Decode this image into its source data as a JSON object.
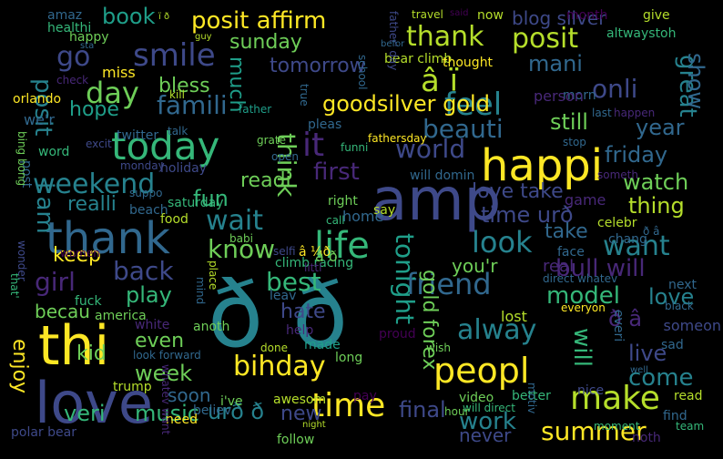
{
  "background": "#000000",
  "palette": [
    "#fde725",
    "#b5de2b",
    "#6ece58",
    "#35b779",
    "#1f9e89",
    "#26828e",
    "#31688e",
    "#3e4989",
    "#482878",
    "#440154"
  ],
  "words": [
    {
      "text": "ð ð",
      "color": "#26828e"
    },
    {
      "text": "amp",
      "color": "#3e4989"
    },
    {
      "text": "love",
      "color": "#3e4989"
    },
    {
      "text": "thi",
      "color": "#fde725"
    },
    {
      "text": "happi",
      "color": "#fde725"
    },
    {
      "text": "thank",
      "color": "#31688e"
    },
    {
      "text": "today",
      "color": "#35b779"
    },
    {
      "text": "life",
      "color": "#35b779"
    },
    {
      "text": "peopl",
      "color": "#fde725"
    },
    {
      "text": "time",
      "color": "#fde725"
    },
    {
      "text": "make",
      "color": "#b5de2b"
    },
    {
      "text": "it",
      "color": "#482878"
    },
    {
      "text": "bihday",
      "color": "#fde725"
    },
    {
      "text": "â ï",
      "color": "#b5de2b"
    },
    {
      "text": "feel",
      "color": "#26828e"
    },
    {
      "text": "smile",
      "color": "#3e4989"
    },
    {
      "text": "posit affirm",
      "color": "#fde725"
    },
    {
      "text": "thank",
      "color": "#b5de2b"
    },
    {
      "text": "posit",
      "color": "#b5de2b"
    },
    {
      "text": "go",
      "color": "#3e4989"
    },
    {
      "text": "day",
      "color": "#6ece58"
    },
    {
      "text": "wait",
      "color": "#26828e"
    },
    {
      "text": "look",
      "color": "#26828e"
    },
    {
      "text": "friend",
      "color": "#31688e"
    },
    {
      "text": "alway",
      "color": "#26828e"
    },
    {
      "text": "want",
      "color": "#26828e"
    },
    {
      "text": "know",
      "color": "#6ece58"
    },
    {
      "text": "back",
      "color": "#3e4989"
    },
    {
      "text": "best",
      "color": "#35b779"
    },
    {
      "text": "girl",
      "color": "#482878"
    },
    {
      "text": "weekend",
      "color": "#26828e"
    },
    {
      "text": "first",
      "color": "#482878"
    },
    {
      "text": "world",
      "color": "#3e4989"
    },
    {
      "text": "beauti",
      "color": "#31688e"
    },
    {
      "text": "goodsilver gold",
      "color": "#fde725"
    },
    {
      "text": "famili",
      "color": "#31688e"
    },
    {
      "text": "think",
      "color": "#6ece58"
    },
    {
      "text": "onli",
      "color": "#3e4989"
    },
    {
      "text": "great",
      "color": "#26828e"
    },
    {
      "text": "show",
      "color": "#31688e"
    },
    {
      "text": "posit",
      "color": "#26828e"
    },
    {
      "text": "i am",
      "color": "#26828e"
    },
    {
      "text": "tonight",
      "color": "#1f9e89"
    },
    {
      "text": "work",
      "color": "#26828e"
    },
    {
      "text": "final",
      "color": "#3e4989"
    },
    {
      "text": "summer",
      "color": "#fde725"
    },
    {
      "text": "come",
      "color": "#26828e"
    },
    {
      "text": "week",
      "color": "#6ece58"
    },
    {
      "text": "play",
      "color": "#35b779"
    },
    {
      "text": "bull will",
      "color": "#482878"
    },
    {
      "text": "model",
      "color": "#35b779"
    },
    {
      "text": "love",
      "color": "#26828e"
    },
    {
      "text": "will",
      "color": "#35b779"
    },
    {
      "text": "gold forex",
      "color": "#6ece58"
    },
    {
      "text": "urð ð",
      "color": "#26828e"
    },
    {
      "text": "veri",
      "color": "#35b779"
    },
    {
      "text": "music",
      "color": "#35b779"
    },
    {
      "text": "new",
      "color": "#3e4989"
    },
    {
      "text": "never",
      "color": "#3e4989"
    },
    {
      "text": "live",
      "color": "#3e4989"
    },
    {
      "text": "ð â",
      "color": "#482878"
    },
    {
      "text": "watch",
      "color": "#6ece58"
    },
    {
      "text": "thing",
      "color": "#b5de2b"
    },
    {
      "text": "friday",
      "color": "#31688e"
    },
    {
      "text": "year",
      "color": "#31688e"
    },
    {
      "text": "still",
      "color": "#6ece58"
    },
    {
      "text": "mani",
      "color": "#31688e"
    },
    {
      "text": "time urð",
      "color": "#3e4989"
    },
    {
      "text": "love take",
      "color": "#3e4989"
    },
    {
      "text": "take",
      "color": "#31688e"
    },
    {
      "text": "you'r",
      "color": "#6ece58"
    },
    {
      "text": "keep",
      "color": "#fde725"
    },
    {
      "text": "becau",
      "color": "#6ece58"
    },
    {
      "text": "even",
      "color": "#6ece58"
    },
    {
      "text": "kid",
      "color": "#6ece58"
    },
    {
      "text": "enjoy",
      "color": "#fde725"
    },
    {
      "text": "hate",
      "color": "#3e4989"
    },
    {
      "text": "realli",
      "color": "#26828e"
    },
    {
      "text": "fun",
      "color": "#35b779"
    },
    {
      "text": "readi",
      "color": "#6ece58"
    },
    {
      "text": "tomorrow",
      "color": "#3e4989"
    },
    {
      "text": "bless",
      "color": "#6ece58"
    },
    {
      "text": "hope",
      "color": "#1f9e89"
    },
    {
      "text": "sunday",
      "color": "#6ece58"
    },
    {
      "text": "much",
      "color": "#1f9e89"
    },
    {
      "text": "blog silver",
      "color": "#3e4989"
    },
    {
      "text": "book",
      "color": "#1f9e89"
    },
    {
      "text": "amaz",
      "color": "#31688e"
    },
    {
      "text": "ï ð",
      "color": "#b5de2b"
    },
    {
      "text": "travel",
      "color": "#b5de2b"
    },
    {
      "text": "said",
      "color": "#440154"
    },
    {
      "text": "now",
      "color": "#b5de2b"
    },
    {
      "text": "month",
      "color": "#440154"
    },
    {
      "text": "give",
      "color": "#b5de2b"
    },
    {
      "text": "altwaystoh",
      "color": "#35b779"
    },
    {
      "text": "healthi",
      "color": "#35b779"
    },
    {
      "text": "happy",
      "color": "#6ece58"
    },
    {
      "text": "guy",
      "color": "#b5de2b"
    },
    {
      "text": "bear climb",
      "color": "#b5de2b"
    },
    {
      "text": "sta",
      "color": "#31688e"
    },
    {
      "text": "miss",
      "color": "#fde725"
    },
    {
      "text": "check",
      "color": "#482878"
    },
    {
      "text": "orlando",
      "color": "#fde725"
    },
    {
      "text": "kill",
      "color": "#b5de2b"
    },
    {
      "text": "thought",
      "color": "#fde725"
    },
    {
      "text": "morn",
      "color": "#31688e"
    },
    {
      "text": "last",
      "color": "#31688e"
    },
    {
      "text": "happen",
      "color": "#482878"
    },
    {
      "text": "twitter",
      "color": "#31688e"
    },
    {
      "text": "talk",
      "color": "#31688e"
    },
    {
      "text": "father",
      "color": "#1f9e89"
    },
    {
      "text": "pleas",
      "color": "#31688e"
    },
    {
      "text": "funni",
      "color": "#35b779"
    },
    {
      "text": "fathersday",
      "color": "#fde725"
    },
    {
      "text": "grate",
      "color": "#6ece58"
    },
    {
      "text": "word",
      "color": "#35b779"
    },
    {
      "text": "excit",
      "color": "#3e4989"
    },
    {
      "text": "monday",
      "color": "#3e4989"
    },
    {
      "text": "holiday",
      "color": "#3e4989"
    },
    {
      "text": "open",
      "color": "#31688e"
    },
    {
      "text": "stop",
      "color": "#31688e"
    },
    {
      "text": "will domin",
      "color": "#31688e"
    },
    {
      "text": "someth",
      "color": "#482878"
    },
    {
      "text": "game",
      "color": "#482878"
    },
    {
      "text": "saturday",
      "color": "#35b779"
    },
    {
      "text": "beach",
      "color": "#31688e"
    },
    {
      "text": "food",
      "color": "#b5de2b"
    },
    {
      "text": "right",
      "color": "#6ece58"
    },
    {
      "text": "say",
      "color": "#b5de2b"
    },
    {
      "text": "call",
      "color": "#35b779"
    },
    {
      "text": "home",
      "color": "#31688e"
    },
    {
      "text": "celebr",
      "color": "#b5de2b"
    },
    {
      "text": "chang",
      "color": "#31688e"
    },
    {
      "text": "ð â",
      "color": "#31688e"
    },
    {
      "text": "babi",
      "color": "#6ece58"
    },
    {
      "text": "selfi",
      "color": "#3e4989"
    },
    {
      "text": "â ¼ð",
      "color": "#fde725"
    },
    {
      "text": "climb racing",
      "color": "#35b779"
    },
    {
      "text": "place",
      "color": "#b5de2b"
    },
    {
      "text": "fuck",
      "color": "#35b779"
    },
    {
      "text": "america",
      "color": "#6ece58"
    },
    {
      "text": "white",
      "color": "#482878"
    },
    {
      "text": "anoth",
      "color": "#6ece58"
    },
    {
      "text": "help",
      "color": "#482878"
    },
    {
      "text": "made",
      "color": "#1f9e89"
    },
    {
      "text": "done",
      "color": "#b5de2b"
    },
    {
      "text": "long",
      "color": "#6ece58"
    },
    {
      "text": "lost",
      "color": "#b5de2b"
    },
    {
      "text": "next",
      "color": "#31688e"
    },
    {
      "text": "black",
      "color": "#31688e"
    },
    {
      "text": "everyon",
      "color": "#fde725"
    },
    {
      "text": "someon",
      "color": "#3e4989"
    },
    {
      "text": "sad",
      "color": "#31688e"
    },
    {
      "text": "proud",
      "color": "#440154"
    },
    {
      "text": "wish",
      "color": "#6ece58"
    },
    {
      "text": "trump",
      "color": "#b5de2b"
    },
    {
      "text": "i've",
      "color": "#6ece58"
    },
    {
      "text": "believ",
      "color": "#31688e"
    },
    {
      "text": "awesom",
      "color": "#b5de2b"
    },
    {
      "text": "need",
      "color": "#fde725"
    },
    {
      "text": "pay",
      "color": "#440154"
    },
    {
      "text": "video",
      "color": "#6ece58"
    },
    {
      "text": "will direct",
      "color": "#35b779"
    },
    {
      "text": "better",
      "color": "#35b779"
    },
    {
      "text": "hour",
      "color": "#6ece58"
    },
    {
      "text": "nice",
      "color": "#3e4989"
    },
    {
      "text": "read",
      "color": "#b5de2b"
    },
    {
      "text": "find",
      "color": "#31688e"
    },
    {
      "text": "polar bear",
      "color": "#3e4989"
    },
    {
      "text": "follow",
      "color": "#6ece58"
    },
    {
      "text": "night",
      "color": "#b5de2b"
    },
    {
      "text": "moment",
      "color": "#35b779"
    },
    {
      "text": "team",
      "color": "#35b779"
    },
    {
      "text": "noth",
      "color": "#482878"
    },
    {
      "text": "look forward",
      "color": "#31688e"
    },
    {
      "text": "well",
      "color": "#31688e"
    },
    {
      "text": "that'",
      "color": "#35b779"
    },
    {
      "text": "wonder",
      "color": "#3e4989"
    },
    {
      "text": "women",
      "color": "#440154"
    },
    {
      "text": "whatev want",
      "color": "#482878"
    },
    {
      "text": "mind",
      "color": "#31688e"
    },
    {
      "text": "leav",
      "color": "#31688e"
    },
    {
      "text": "face",
      "color": "#31688e"
    },
    {
      "text": "direct whatev",
      "color": "#31688e"
    },
    {
      "text": "true",
      "color": "#31688e"
    },
    {
      "text": "littl",
      "color": "#482878"
    },
    {
      "text": "motiv",
      "color": "#31688e"
    },
    {
      "text": "everi",
      "color": "#31688e"
    },
    {
      "text": "post",
      "color": "#31688e"
    },
    {
      "text": "bing bong",
      "color": "#6ece58"
    },
    {
      "text": "suppo",
      "color": "#31688e"
    },
    {
      "text": "father' day",
      "color": "#3e4989"
    },
    {
      "text": "befor",
      "color": "#31688e"
    },
    {
      "text": "school",
      "color": "#31688e"
    },
    {
      "text": "we'r",
      "color": "#31688e"
    },
    {
      "text": "person",
      "color": "#482878"
    },
    {
      "text": "real",
      "color": "#482878"
    },
    {
      "text": "soon",
      "color": "#31688e"
    },
    {
      "text": "â ð",
      "color": "#6ece58"
    },
    {
      "text": "ð â",
      "color": "#6ece58"
    },
    {
      "text": "i â",
      "color": "#3e4989"
    },
    {
      "text": "â â",
      "color": "#31688e"
    }
  ]
}
